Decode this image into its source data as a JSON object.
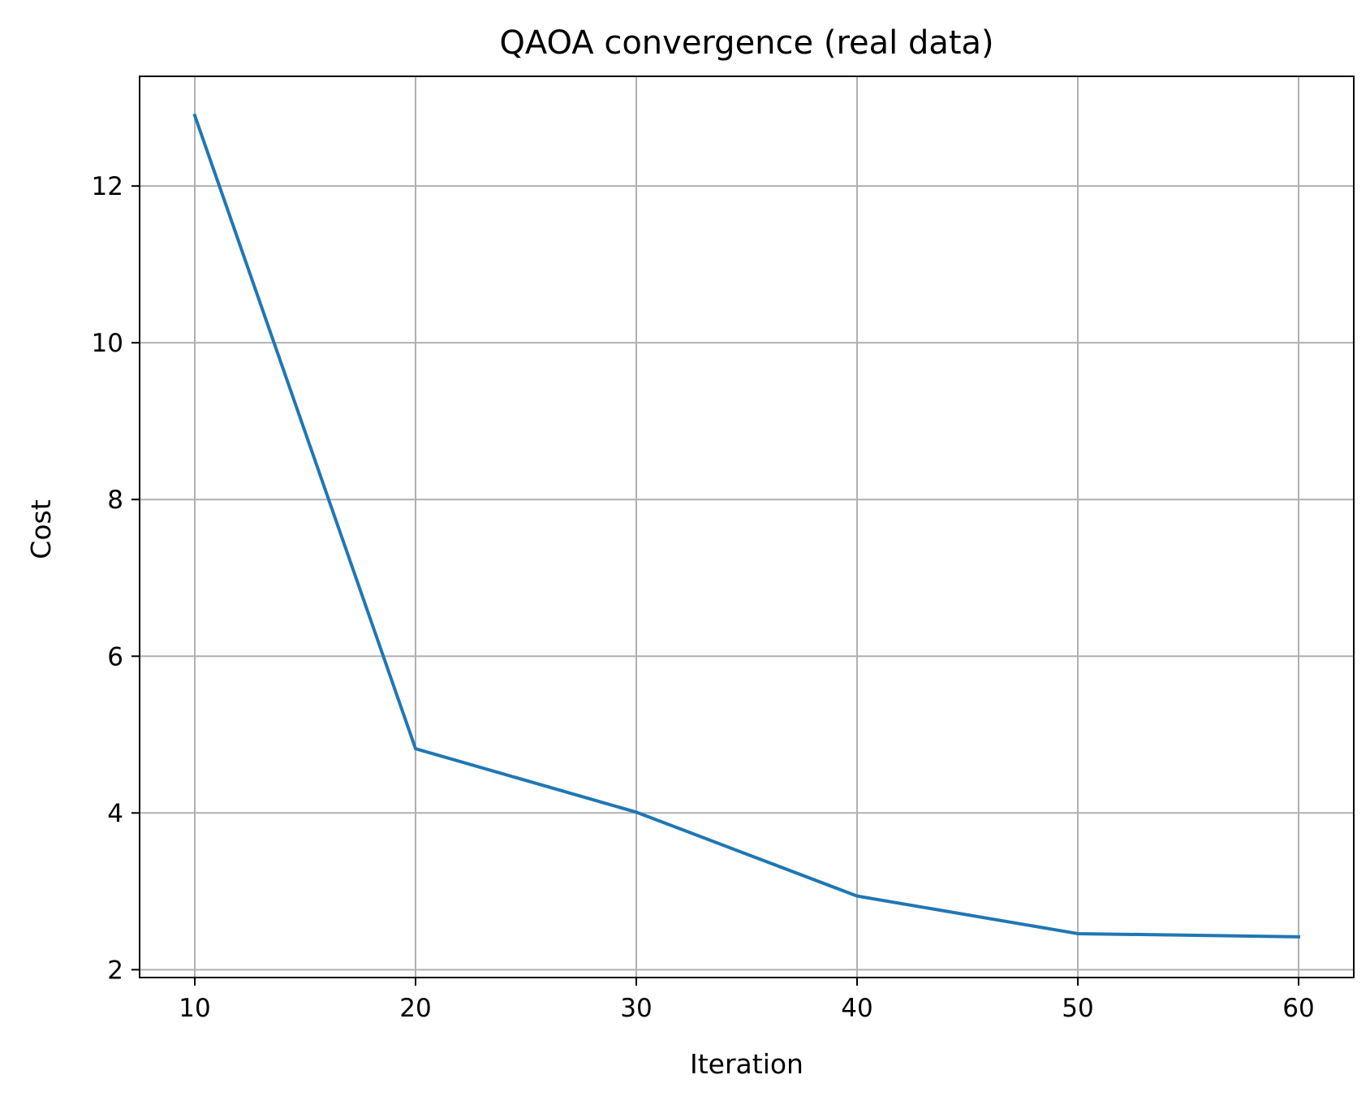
{
  "chart_data": {
    "type": "line",
    "title": "QAOA convergence (real data)",
    "xlabel": "Iteration",
    "ylabel": "Cost",
    "x": [
      10,
      20,
      30,
      40,
      50,
      60
    ],
    "series": [
      {
        "values": [
          12.9,
          4.82,
          4.01,
          2.94,
          2.46,
          2.42
        ],
        "color": "#1f77b4"
      }
    ],
    "xlim": [
      7.5,
      62.5
    ],
    "ylim": [
      1.9,
      13.4
    ],
    "xticks": [
      10,
      20,
      30,
      40,
      50,
      60
    ],
    "xtick_labels": [
      "10",
      "20",
      "30",
      "40",
      "50",
      "60"
    ],
    "yticks": [
      2,
      4,
      6,
      8,
      10,
      12
    ],
    "ytick_labels": [
      "2",
      "4",
      "6",
      "8",
      "10",
      "12"
    ],
    "grid": true,
    "grid_color": "#b0b0b0",
    "axis_color": "#000000",
    "legend": "none"
  }
}
